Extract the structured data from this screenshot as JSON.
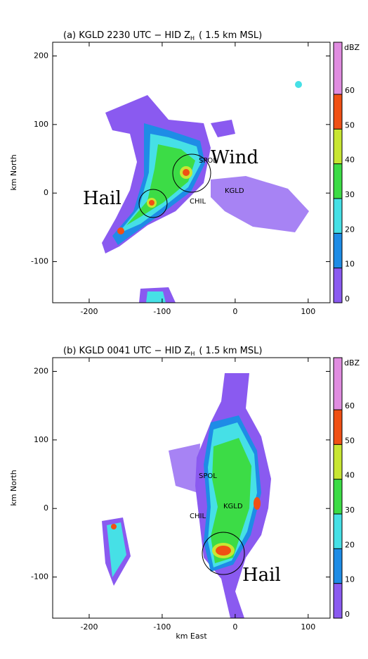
{
  "chart_data": [
    {
      "type": "radar",
      "title": "(a) KGLD 2230 UTC − HID Z",
      "title_sub": "H",
      "title_end": "(   1.5 km MSL)",
      "ylabel": "km North",
      "xlim": [
        -250,
        130
      ],
      "ylim": [
        -160,
        220
      ],
      "xticks": [
        -200,
        -100,
        0,
        100
      ],
      "yticks": [
        -100,
        0,
        100,
        200
      ],
      "colorbar": {
        "label": "dBZ",
        "clim": [
          0,
          75
        ],
        "ticks": [
          0,
          10,
          20,
          30,
          40,
          50,
          60
        ],
        "colors": [
          "#8a5af0",
          "#1e8ce6",
          "#46e0e6",
          "#3cdc46",
          "#c8e632",
          "#f05014",
          "#e08ce0"
        ]
      },
      "annotations": [
        "Wind",
        "Hail",
        "SPOL",
        "KGLD",
        "CHIL"
      ]
    },
    {
      "type": "radar",
      "title": "(b) KGLD 0041 UTC − HID Z",
      "title_sub": "H",
      "title_end": "(   1.5 km MSL)",
      "xlabel": "km East",
      "ylabel": "km North",
      "xlim": [
        -250,
        130
      ],
      "ylim": [
        -160,
        220
      ],
      "xticks": [
        -200,
        -100,
        0,
        100
      ],
      "yticks": [
        -100,
        0,
        100,
        200
      ],
      "colorbar": {
        "label": "dBZ",
        "clim": [
          0,
          75
        ],
        "ticks": [
          0,
          10,
          20,
          30,
          40,
          50,
          60
        ],
        "colors": [
          "#8a5af0",
          "#1e8ce6",
          "#46e0e6",
          "#3cdc46",
          "#c8e632",
          "#f05014",
          "#e08ce0"
        ]
      },
      "annotations": [
        "Hail",
        "SPOL",
        "KGLD",
        "CHIL"
      ]
    }
  ]
}
